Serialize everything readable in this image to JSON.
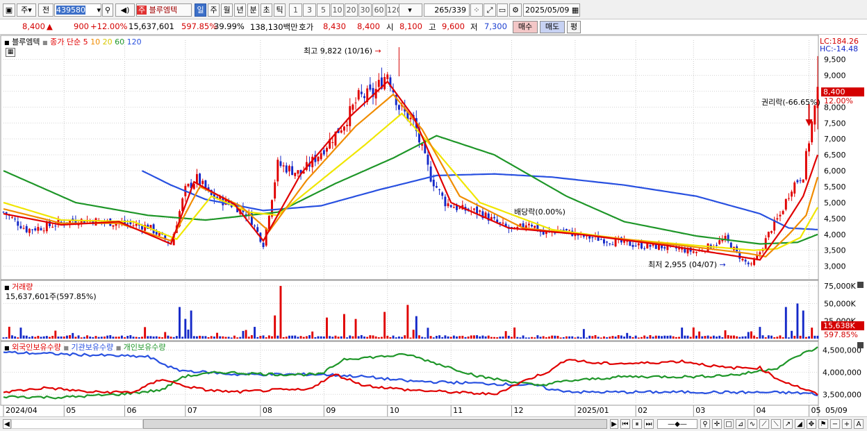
{
  "toolbar": {
    "market": "주",
    "prev": "전",
    "code": "439580",
    "stock_name": "블루엠텍",
    "periods": [
      "일",
      "주",
      "월",
      "년",
      "분",
      "초",
      "틱"
    ],
    "active_period": "일",
    "minutes": [
      "1",
      "3",
      "5",
      "10",
      "20",
      "30",
      "60",
      "120"
    ],
    "count": "265",
    "total": "/339",
    "date": "2025/05/09"
  },
  "quote": {
    "price": "8,400",
    "change": "900",
    "change_pct": "+12.00%",
    "volume": "15,637,601",
    "vol_ratio": "597.85%",
    "turnover": "39.99%",
    "amount": "138,130백만",
    "ask_label": "호가",
    "ask": "8,430",
    "bid": "8,400",
    "open_label": "시",
    "open": "8,100",
    "high_label": "고",
    "high": "9,600",
    "low_label": "저",
    "low": "7,300",
    "buy": "매수",
    "sell": "매도",
    "eval": "평"
  },
  "legend": {
    "name": "블루엠텍",
    "ma_label": "종가 단순",
    "ma": [
      "5",
      "10",
      "20",
      "60",
      "120"
    ],
    "ma_colors": [
      "#e00000",
      "#f08c00",
      "#f0e600",
      "#1e9628",
      "#2850e0"
    ]
  },
  "annotations": {
    "high": "최고 9,822 (10/16)",
    "low": "최저 2,955 (04/07)",
    "dividend": "배당락(0.00%)",
    "rights": "권리락(-66.65%)"
  },
  "right_panel": {
    "lc": "LC:184.26",
    "hc": "HC:-14.48",
    "price_tag": "8,400",
    "pct_tag": "12.00%",
    "vol_tag": "15,638K",
    "vol_pct": "597.85%"
  },
  "volume": {
    "title": "거래량",
    "value": "15,637,601주(597.85%)"
  },
  "holdings": {
    "foreign": "외국인보유수량",
    "inst": "기관보유수량",
    "indiv": "개인보유수량"
  },
  "months": [
    "2024/04",
    "05",
    "06",
    "07",
    "08",
    "09",
    "10",
    "11",
    "12",
    "2025/01",
    "02",
    "03",
    "04",
    "05",
    "05/09"
  ],
  "colors": {
    "up": "#e00000",
    "down": "#1428c8",
    "grid": "#c8c8c8"
  },
  "chart_data": {
    "type": "candlestick",
    "price_axis": {
      "ticks": [
        3000,
        3500,
        4000,
        4500,
        5000,
        5500,
        6000,
        6500,
        7000,
        7500,
        8000,
        8500,
        9000,
        9500
      ],
      "labels": [
        "3,000",
        "3,500",
        "4,000",
        "4,500",
        "5,000",
        "5,500",
        "6,000",
        "6,500",
        "7,000",
        "7,500",
        "8,000",
        "8,500",
        "9,000",
        "9,500"
      ],
      "range": [
        2600,
        10100
      ]
    },
    "volume_axis": {
      "ticks": [
        25000,
        50000,
        75000
      ],
      "labels": [
        "25,000K",
        "50,000K",
        "75,000K"
      ],
      "range": [
        0,
        80000
      ]
    },
    "holding_axis": {
      "ticks": [
        3500000,
        4000000,
        4500000
      ],
      "labels": [
        "3,500,000",
        "4,000,000",
        "4,500,000"
      ],
      "range": [
        3300000,
        4650000
      ]
    },
    "close_anchors": [
      [
        0,
        4700
      ],
      [
        8,
        4150
      ],
      [
        15,
        4250
      ],
      [
        22,
        4420
      ],
      [
        30,
        4450
      ],
      [
        40,
        4350
      ],
      [
        50,
        4250
      ],
      [
        58,
        3700
      ],
      [
        63,
        5400
      ],
      [
        67,
        5750
      ],
      [
        72,
        5200
      ],
      [
        80,
        4900
      ],
      [
        85,
        4600
      ],
      [
        90,
        3700
      ],
      [
        95,
        6200
      ],
      [
        103,
        5900
      ],
      [
        110,
        6600
      ],
      [
        118,
        7500
      ],
      [
        123,
        8300
      ],
      [
        128,
        8400
      ],
      [
        133,
        9100
      ],
      [
        137,
        8000
      ],
      [
        142,
        7500
      ],
      [
        148,
        5800
      ],
      [
        153,
        5000
      ],
      [
        158,
        4800
      ],
      [
        165,
        4700
      ],
      [
        172,
        4300
      ],
      [
        177,
        4100
      ],
      [
        182,
        4400
      ],
      [
        187,
        4000
      ],
      [
        193,
        4150
      ],
      [
        200,
        3950
      ],
      [
        210,
        3800
      ],
      [
        220,
        3650
      ],
      [
        230,
        3600
      ],
      [
        240,
        3450
      ],
      [
        245,
        3650
      ],
      [
        250,
        3850
      ],
      [
        256,
        3200
      ],
      [
        259,
        3000
      ],
      [
        262,
        3450
      ],
      [
        266,
        4200
      ],
      [
        269,
        4600
      ],
      [
        273,
        5500
      ],
      [
        277,
        5900
      ],
      [
        280,
        7500
      ],
      [
        282,
        8400
      ]
    ],
    "ma_anchors": {
      "ma5": [
        [
          0,
          4650
        ],
        [
          20,
          4300
        ],
        [
          40,
          4400
        ],
        [
          58,
          3700
        ],
        [
          66,
          5650
        ],
        [
          80,
          4950
        ],
        [
          90,
          3800
        ],
        [
          103,
          5900
        ],
        [
          120,
          7700
        ],
        [
          133,
          8800
        ],
        [
          142,
          7700
        ],
        [
          155,
          5000
        ],
        [
          175,
          4200
        ],
        [
          200,
          4000
        ],
        [
          230,
          3650
        ],
        [
          255,
          3300
        ],
        [
          262,
          3200
        ],
        [
          270,
          4200
        ],
        [
          277,
          5200
        ],
        [
          282,
          6500
        ]
      ],
      "ma10": [
        [
          0,
          4800
        ],
        [
          20,
          4350
        ],
        [
          40,
          4350
        ],
        [
          58,
          3800
        ],
        [
          68,
          5500
        ],
        [
          82,
          4900
        ],
        [
          92,
          4100
        ],
        [
          105,
          5700
        ],
        [
          122,
          7400
        ],
        [
          135,
          8400
        ],
        [
          145,
          7300
        ],
        [
          158,
          5200
        ],
        [
          180,
          4200
        ],
        [
          205,
          3950
        ],
        [
          235,
          3650
        ],
        [
          258,
          3400
        ],
        [
          264,
          3300
        ],
        [
          272,
          4000
        ],
        [
          278,
          4600
        ],
        [
          282,
          5800
        ]
      ],
      "ma20": [
        [
          0,
          5000
        ],
        [
          20,
          4450
        ],
        [
          45,
          4400
        ],
        [
          60,
          3850
        ],
        [
          72,
          5200
        ],
        [
          85,
          4700
        ],
        [
          95,
          4600
        ],
        [
          110,
          5700
        ],
        [
          125,
          6800
        ],
        [
          138,
          7800
        ],
        [
          150,
          6600
        ],
        [
          165,
          5000
        ],
        [
          190,
          4150
        ],
        [
          215,
          3850
        ],
        [
          240,
          3650
        ],
        [
          260,
          3500
        ],
        [
          268,
          3550
        ],
        [
          276,
          3900
        ],
        [
          282,
          4850
        ]
      ],
      "ma60": [
        [
          0,
          6000
        ],
        [
          25,
          5000
        ],
        [
          50,
          4600
        ],
        [
          70,
          4450
        ],
        [
          95,
          4700
        ],
        [
          115,
          5600
        ],
        [
          135,
          6400
        ],
        [
          150,
          7100
        ],
        [
          170,
          6500
        ],
        [
          195,
          5200
        ],
        [
          215,
          4400
        ],
        [
          240,
          3950
        ],
        [
          262,
          3700
        ],
        [
          275,
          3750
        ],
        [
          282,
          4000
        ]
      ],
      "ma120": [
        [
          48,
          6000
        ],
        [
          58,
          5550
        ],
        [
          70,
          5100
        ],
        [
          90,
          4750
        ],
        [
          110,
          4900
        ],
        [
          130,
          5400
        ],
        [
          150,
          5850
        ],
        [
          170,
          5900
        ],
        [
          190,
          5800
        ],
        [
          215,
          5550
        ],
        [
          240,
          5200
        ],
        [
          262,
          4650
        ],
        [
          272,
          4200
        ],
        [
          282,
          4150
        ]
      ]
    },
    "volume_spikes": [
      [
        61,
        45000
      ],
      [
        63,
        28000
      ],
      [
        65,
        40000
      ],
      [
        94,
        33000
      ],
      [
        96,
        75000
      ],
      [
        112,
        30000
      ],
      [
        118,
        35000
      ],
      [
        122,
        28000
      ],
      [
        132,
        38000
      ],
      [
        140,
        48000
      ],
      [
        143,
        32000
      ],
      [
        271,
        45000
      ],
      [
        275,
        50000
      ],
      [
        277,
        40000
      ],
      [
        280,
        15638
      ]
    ],
    "holdings": {
      "foreign": [
        [
          0,
          3550000
        ],
        [
          15,
          3650000
        ],
        [
          30,
          3550000
        ],
        [
          45,
          3550000
        ],
        [
          55,
          3850000
        ],
        [
          62,
          3700000
        ],
        [
          70,
          3600000
        ],
        [
          80,
          3550000
        ],
        [
          95,
          3600000
        ],
        [
          105,
          3600000
        ],
        [
          115,
          3950000
        ],
        [
          125,
          3700000
        ],
        [
          140,
          3600000
        ],
        [
          155,
          3550000
        ],
        [
          170,
          3500000
        ],
        [
          182,
          3850000
        ],
        [
          190,
          4050000
        ],
        [
          195,
          4300000
        ],
        [
          205,
          4200000
        ],
        [
          220,
          4200000
        ],
        [
          235,
          4250000
        ],
        [
          250,
          4100000
        ],
        [
          262,
          4100000
        ],
        [
          268,
          3850000
        ],
        [
          274,
          3700000
        ],
        [
          280,
          3550000
        ],
        [
          282,
          3500000
        ]
      ],
      "inst": [
        [
          0,
          4450000
        ],
        [
          25,
          4400000
        ],
        [
          50,
          4350000
        ],
        [
          60,
          4050000
        ],
        [
          80,
          3950000
        ],
        [
          110,
          3950000
        ],
        [
          125,
          3900000
        ],
        [
          140,
          3800000
        ],
        [
          160,
          3760000
        ],
        [
          185,
          3700000
        ],
        [
          190,
          3600000
        ],
        [
          200,
          3550000
        ],
        [
          240,
          3550000
        ],
        [
          270,
          3540000
        ],
        [
          280,
          3520000
        ],
        [
          282,
          3450000
        ]
      ],
      "indiv": [
        [
          0,
          3450000
        ],
        [
          20,
          3430000
        ],
        [
          40,
          3500000
        ],
        [
          55,
          3600000
        ],
        [
          62,
          3900000
        ],
        [
          75,
          4000000
        ],
        [
          95,
          3950000
        ],
        [
          110,
          3950000
        ],
        [
          118,
          4300000
        ],
        [
          130,
          4350000
        ],
        [
          140,
          4400000
        ],
        [
          150,
          4200000
        ],
        [
          165,
          3900000
        ],
        [
          175,
          3800000
        ],
        [
          185,
          3700000
        ],
        [
          195,
          3800000
        ],
        [
          215,
          3900000
        ],
        [
          240,
          3900000
        ],
        [
          255,
          3950000
        ],
        [
          268,
          4100000
        ],
        [
          276,
          4400000
        ],
        [
          282,
          4550000
        ]
      ]
    }
  }
}
